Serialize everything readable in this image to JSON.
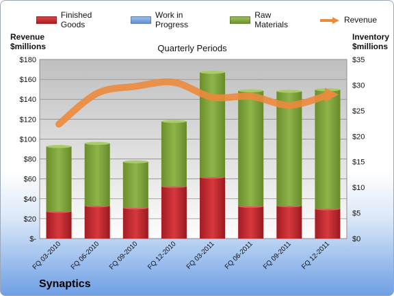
{
  "chart_data": {
    "type": "bar",
    "title": "Quarterly Periods",
    "company": "Synaptics",
    "y_left_label": "Revenue\n$millions",
    "y_right_label": "Inventory\n$millions",
    "categories": [
      "FQ 03-2010",
      "FQ 06-2010",
      "FQ 09-2010",
      "FQ 12-2010",
      "FQ 03-2011",
      "FQ 06-2011",
      "FQ 09-2011",
      "FQ 12-2011"
    ],
    "y_left_ticks": [
      "$-",
      "$20",
      "$40",
      "$60",
      "$80",
      "$100",
      "$120",
      "$140",
      "$160",
      "$180"
    ],
    "y_right_ticks": [
      "$0",
      "$5",
      "$10",
      "$15",
      "$20",
      "$25",
      "$30",
      "$35"
    ],
    "ylim_left": [
      0,
      180
    ],
    "ylim_right": [
      0,
      35
    ],
    "series": [
      {
        "name": "Finished Goods",
        "kind": "bar",
        "axis": "right",
        "color": "#c0282e",
        "values": [
          5.3,
          6.4,
          6.0,
          10.2,
          12.0,
          6.3,
          6.4,
          5.8
        ]
      },
      {
        "name": "Work in Progress",
        "kind": "bar",
        "axis": "right",
        "color": "#6f9bd8",
        "values": [
          0,
          0,
          0,
          0,
          0,
          0,
          0,
          0
        ]
      },
      {
        "name": "Raw Materials",
        "kind": "bar",
        "axis": "right",
        "color": "#7da13a",
        "values": [
          12.7,
          12.2,
          9.0,
          12.7,
          20.5,
          22.6,
          22.4,
          23.3
        ]
      },
      {
        "name": "Revenue",
        "kind": "line",
        "axis": "left",
        "color": "#ec8a3c",
        "values": [
          115,
          146,
          153,
          157,
          142,
          143,
          134,
          144
        ]
      }
    ],
    "grid": true,
    "legend": "top"
  }
}
